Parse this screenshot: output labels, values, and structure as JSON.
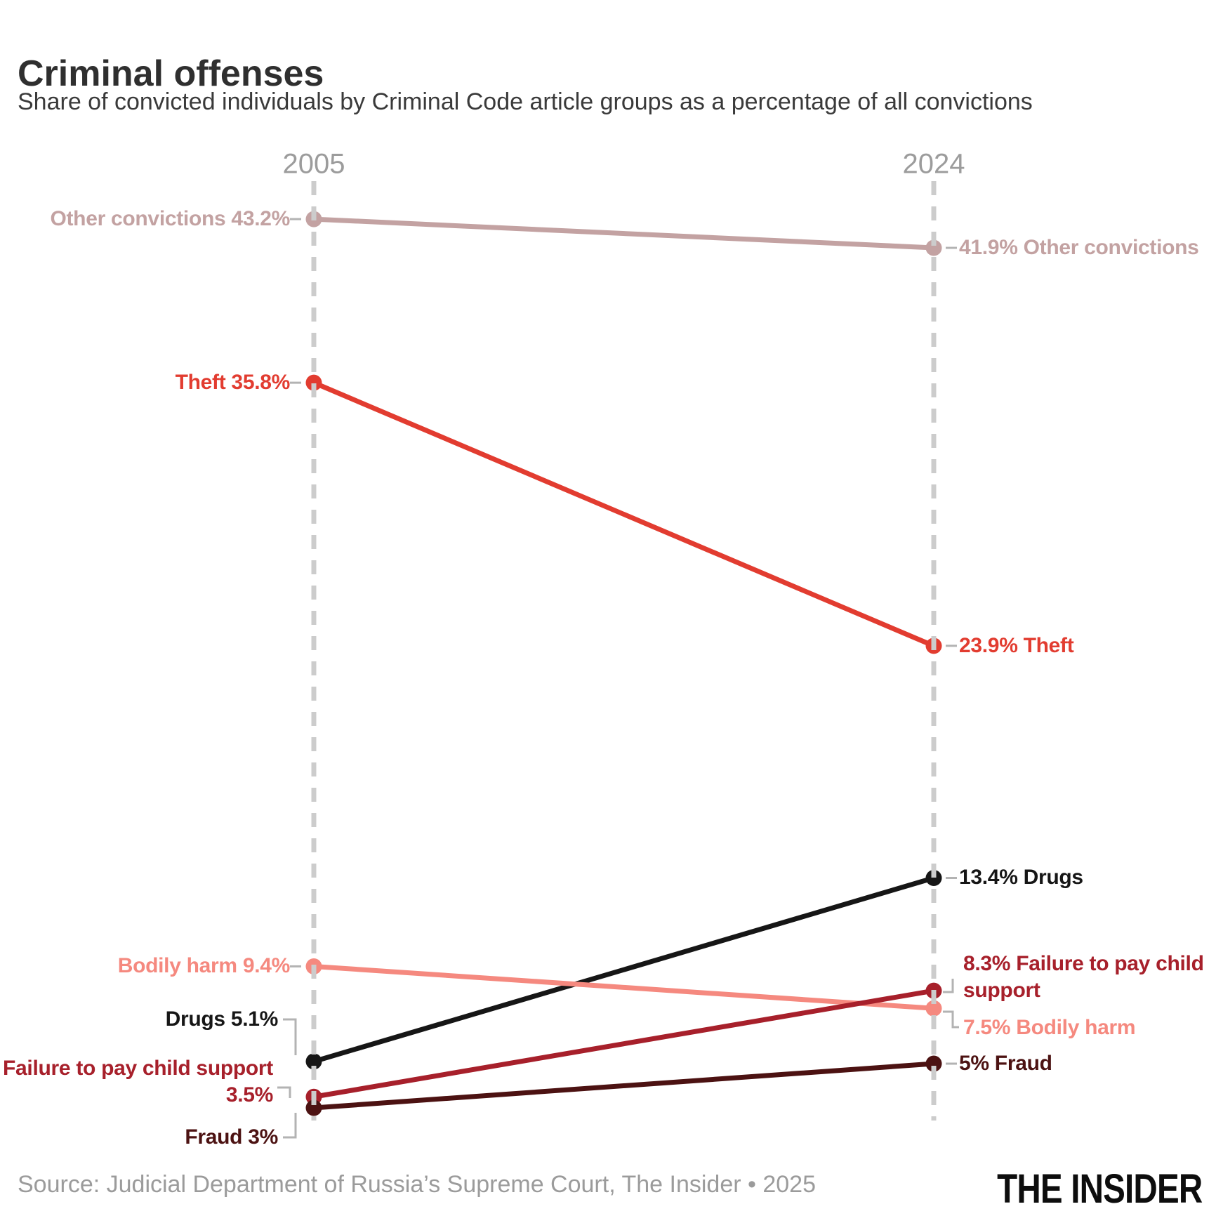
{
  "header": {
    "title": "Criminal offenses",
    "subtitle": "Share of convicted individuals by Criminal Code article groups as a percentage of all convictions"
  },
  "chart_data": {
    "type": "line",
    "subtype": "slope-chart",
    "columns": [
      "2005",
      "2024"
    ],
    "grid": "two dashed vertical guides, one per year column",
    "legend_position": "labels beside points",
    "value_axis_range_implied": [
      3,
      43.2
    ],
    "series": [
      {
        "name": "Other convictions",
        "values": [
          43.2,
          41.9
        ],
        "color": "#c3a2a2",
        "left_label": "Other convictions 43.2%",
        "right_label": "41.9% Other convictions"
      },
      {
        "name": "Theft",
        "values": [
          35.8,
          23.9
        ],
        "color": "#e23c30",
        "left_label": "Theft 35.8%",
        "right_label": "23.9% Theft"
      },
      {
        "name": "Drugs",
        "values": [
          5.1,
          13.4
        ],
        "color": "#161616",
        "left_label": "Drugs 5.1%",
        "right_label": "13.4% Drugs"
      },
      {
        "name": "Bodily harm",
        "values": [
          9.4,
          7.5
        ],
        "color": "#f5897f",
        "left_label": "Bodily harm 9.4%",
        "right_label": "7.5% Bodily harm"
      },
      {
        "name": "Failure to pay child support",
        "values": [
          3.5,
          8.3
        ],
        "color": "#a7202b",
        "left_label_lines": [
          "Failure to pay child support",
          "3.5%"
        ],
        "right_label_lines": [
          "8.3% Failure to pay child",
          "support"
        ]
      },
      {
        "name": "Fraud",
        "values": [
          3,
          5
        ],
        "color": "#4c1212",
        "left_label": "Fraud 3%",
        "right_label": "5% Fraud"
      }
    ],
    "colors": {
      "dashed_guides": "#cccccc",
      "connector_ticks": "#b3b3b3",
      "year_labels": "#9c9c9c"
    }
  },
  "footer": {
    "source": "Source: Judicial Department of Russia’s Supreme Court, The Insider • 2025",
    "logo": "THE INSIDER"
  }
}
